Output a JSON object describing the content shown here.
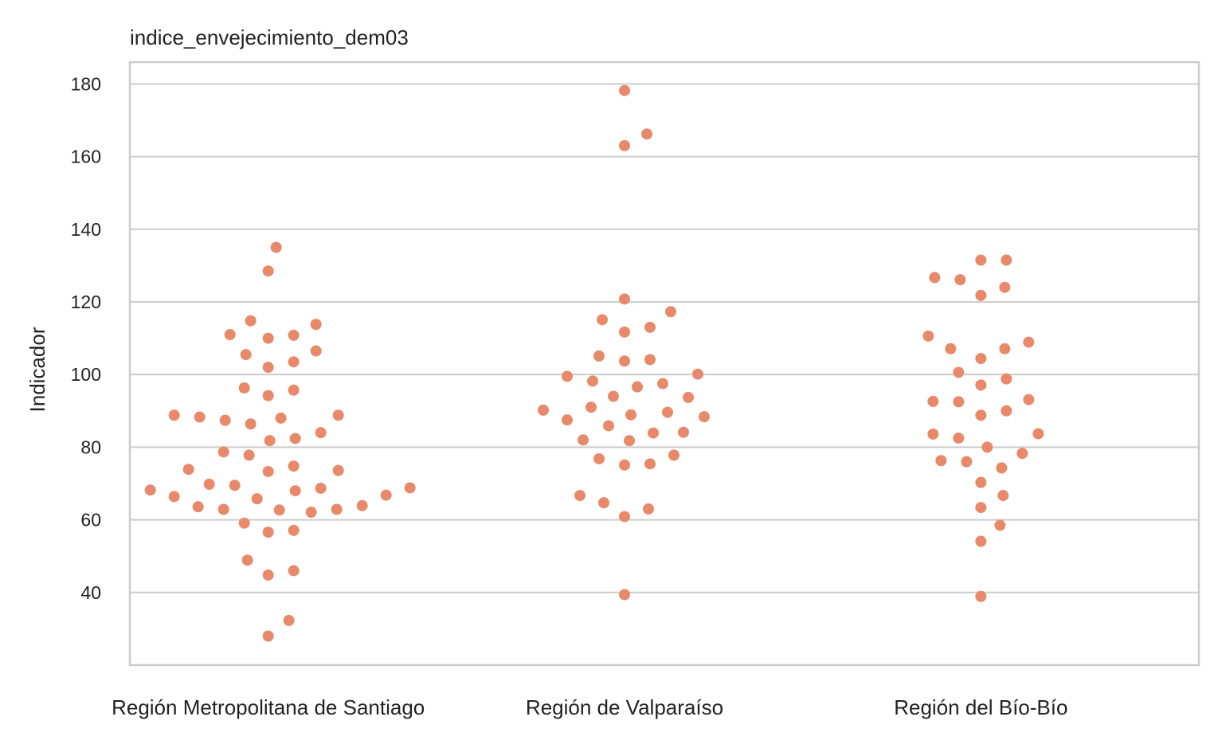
{
  "chart_data": {
    "type": "scatter",
    "subtype": "swarm",
    "title": "indice_envejecimiento_dem03",
    "xlabel": "",
    "ylabel": "Indicador",
    "categories": [
      "Región Metropolitana de Santiago",
      "Región de Valparaíso",
      "Región del Bío-Bío"
    ],
    "ylim": [
      20,
      186
    ],
    "yticks": [
      40,
      60,
      80,
      100,
      120,
      140,
      160,
      180
    ],
    "grid": true,
    "colors": {
      "point": "#E8896A",
      "grid": "#CCCCCC",
      "frame": "#CCCCCC",
      "text": "#222222"
    },
    "series": [
      {
        "category": "Región Metropolitana de Santiago",
        "values": [
          135,
          128.5,
          111,
          110.8,
          110,
          113.8,
          114.8,
          103.5,
          102,
          105.5,
          106.5,
          95.7,
          94.2,
          96.3,
          88.8,
          88.3,
          86.4,
          87.4,
          88,
          88.8,
          84,
          82.4,
          81.8,
          77.8,
          78.7,
          73.6,
          74.8,
          73.3,
          73.9,
          68.8,
          68.7,
          68,
          69.5,
          69.8,
          66.8,
          66.4,
          65.8,
          68.2,
          63.9,
          62.9,
          62.1,
          63.6,
          62.7,
          62.9,
          57.1,
          56.6,
          59.1,
          46,
          44.8,
          48.9,
          32.3,
          28
        ]
      },
      {
        "category": "Región de Valparaíso",
        "values": [
          178.2,
          166.2,
          163,
          120.8,
          117.3,
          113,
          111.7,
          115.1,
          104.1,
          103.7,
          105.1,
          99.5,
          100.1,
          94,
          93.7,
          96.6,
          97.5,
          98.2,
          91,
          88.4,
          88.9,
          89.6,
          87.5,
          90.2,
          85.9,
          84.1,
          81.8,
          83.9,
          82,
          77.8,
          75.4,
          75.1,
          76.8,
          63,
          60.9,
          64.7,
          66.7,
          39.4
        ]
      },
      {
        "category": "Región del Bío-Bío",
        "values": [
          131.5,
          131.5,
          124,
          121.8,
          126.1,
          126.7,
          108.9,
          107.1,
          104.4,
          107.1,
          110.6,
          98.8,
          97.1,
          100.6,
          93.1,
          90,
          88.8,
          92.5,
          92.6,
          83.6,
          82.5,
          80,
          83.7,
          78.3,
          76.3,
          74.3,
          76,
          70.3,
          66.7,
          63.4,
          58.5,
          54.1,
          38.9
        ]
      }
    ]
  }
}
